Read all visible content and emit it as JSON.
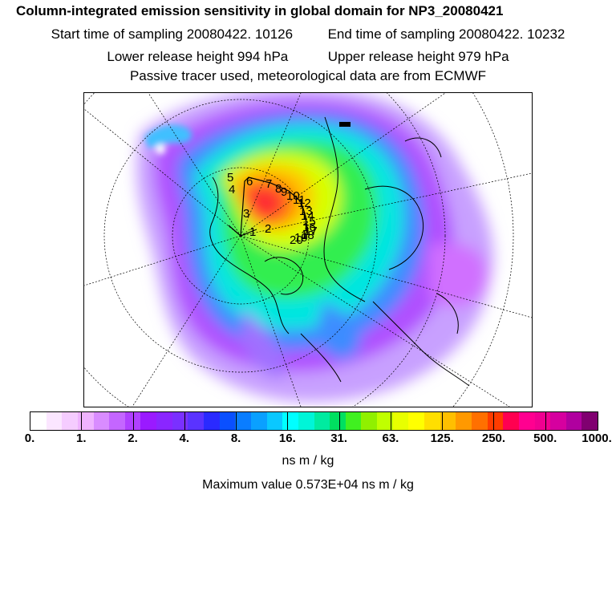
{
  "header": {
    "title": "Column-integrated emission sensitivity in global domain for NP3_20080421",
    "start_time": "Start time of sampling 20080422. 10126",
    "end_time": "End time of sampling 20080422. 10232",
    "lower_release": "Lower release height  994 hPa",
    "upper_release": "Upper release height  979 hPa",
    "tracer_note": "Passive tracer used, meteorological data are from ECMWF"
  },
  "colorbar": {
    "colors": [
      "#ffffff",
      "#fbe6ff",
      "#f5ccff",
      "#efb3ff",
      "#d98cff",
      "#c466ff",
      "#b040ff",
      "#9a1aff",
      "#8a26ff",
      "#7a30ff",
      "#5a33ff",
      "#2a2aff",
      "#0a50ff",
      "#0a7dff",
      "#0aa0ff",
      "#0ac8ff",
      "#00ffff",
      "#00f5d8",
      "#00eba0",
      "#00e060",
      "#40f020",
      "#90f000",
      "#c0ff00",
      "#e8ff00",
      "#ffff00",
      "#ffdf00",
      "#ffbf00",
      "#ff9900",
      "#ff7000",
      "#ff3c00",
      "#ff0050",
      "#ff0090",
      "#f00090",
      "#d6009f",
      "#b0009f",
      "#800070"
    ],
    "tick_labels": [
      "0.",
      "1.",
      "2.",
      "4.",
      "8.",
      "16.",
      "31.",
      "63.",
      "125.",
      "250.",
      "500.",
      "1000."
    ],
    "units": "ns m / kg"
  },
  "max_value_text": "Maximum value  0.573E+04 ns m / kg",
  "track_labels": [
    "1",
    "2",
    "3",
    "4",
    "5",
    "6",
    "7",
    "8",
    "9",
    "10",
    "11",
    "12",
    "13",
    "14",
    "15",
    "16",
    "17",
    "18",
    "19",
    "20"
  ]
}
